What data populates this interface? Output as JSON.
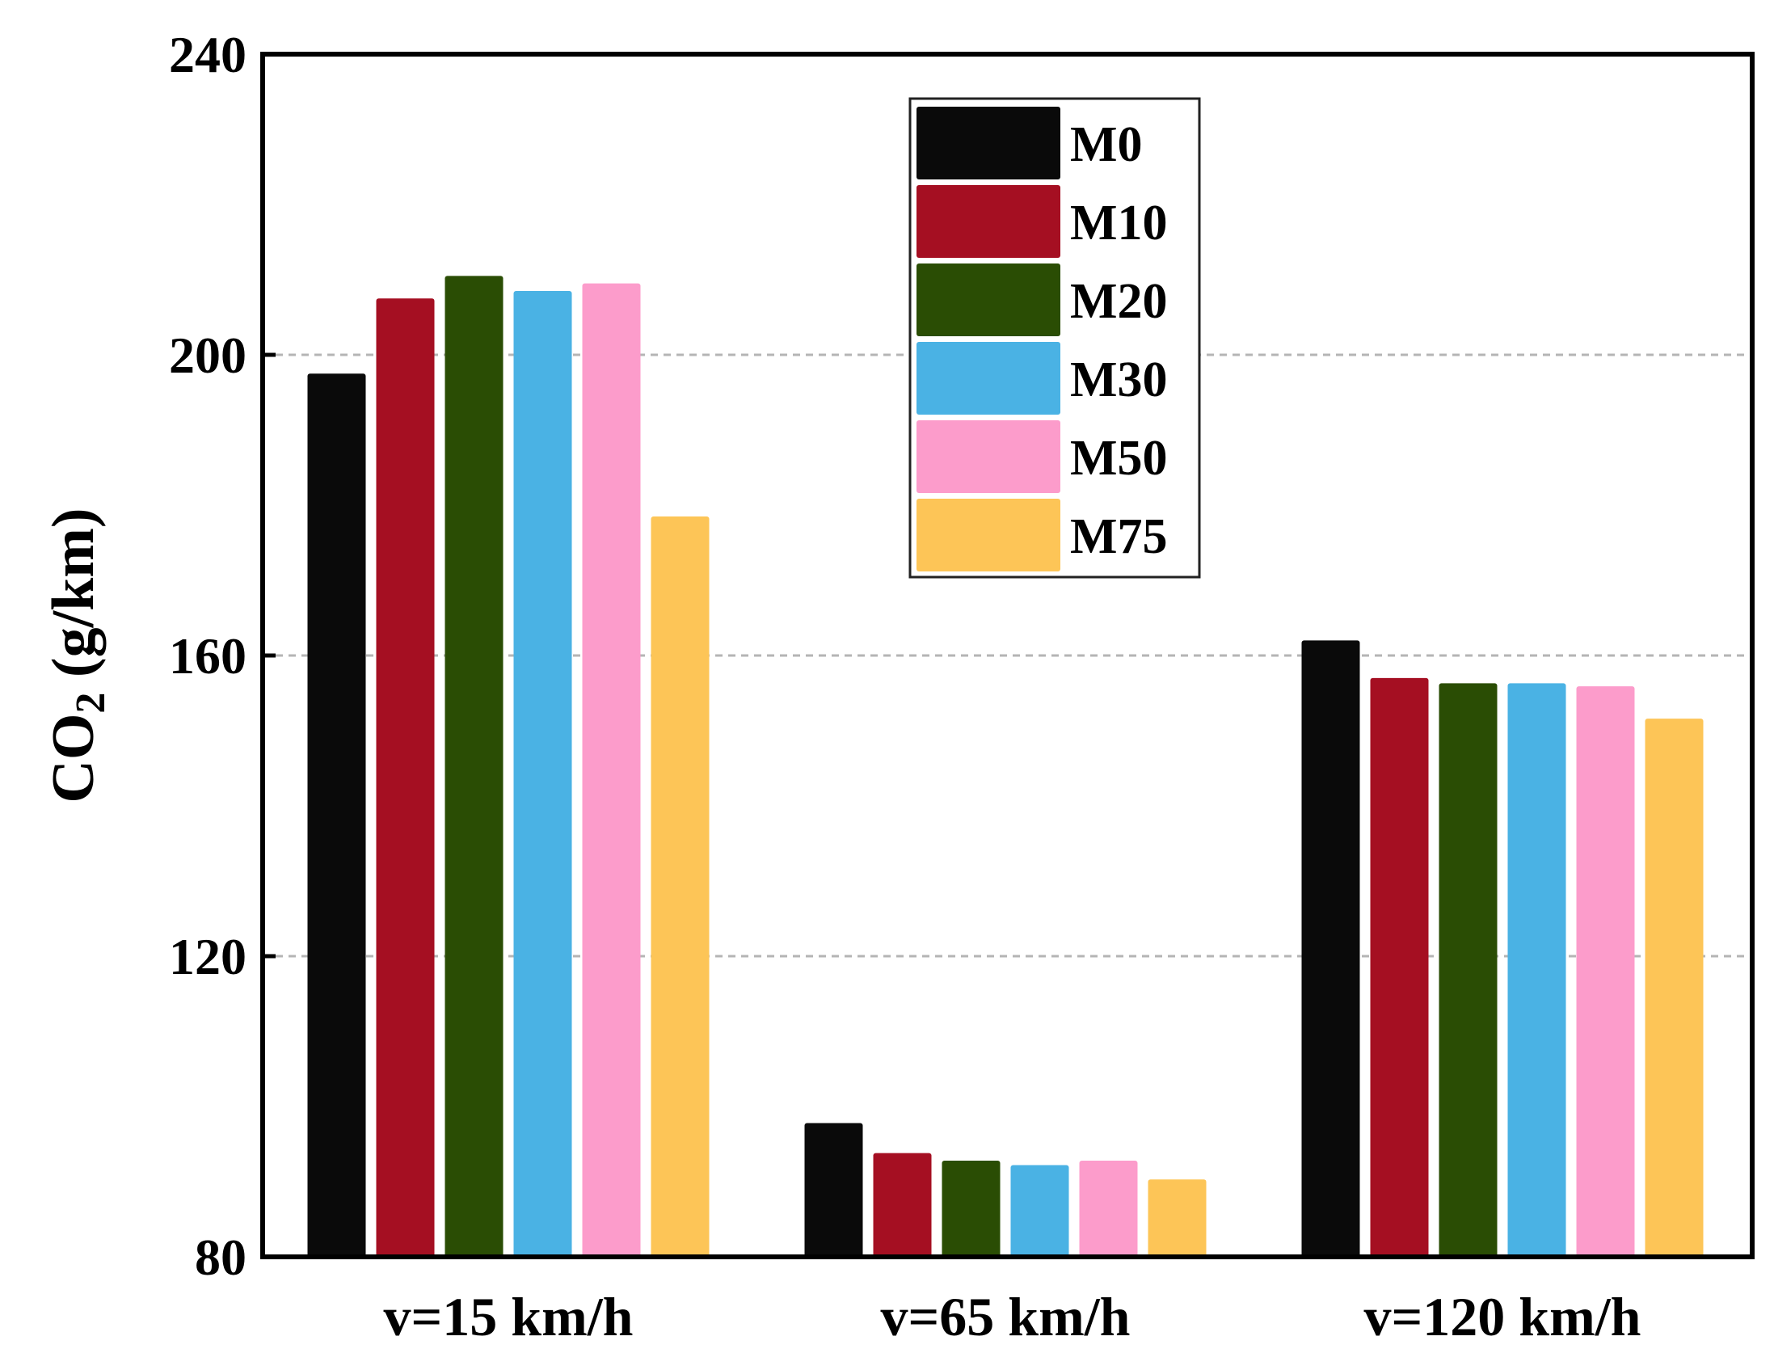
{
  "chart_data": {
    "type": "bar",
    "title": "",
    "xlabel": "",
    "ylabel_main": "CO",
    "ylabel_sub": "2",
    "ylabel_unit": " (g/km)",
    "ylim": [
      80,
      240
    ],
    "yticks": [
      80,
      120,
      160,
      200,
      240
    ],
    "grid": "dashed-horizontal",
    "legend_position": "top-center",
    "categories": [
      "v=15 km/h",
      "v=65 km/h",
      "v=120 km/h"
    ],
    "series": [
      {
        "name": "M0",
        "color": "#0a0a0a",
        "values": [
          197.5,
          97.8,
          162.0
        ]
      },
      {
        "name": "M10",
        "color": "#a50f22",
        "values": [
          207.5,
          93.8,
          157.0
        ]
      },
      {
        "name": "M20",
        "color": "#2a4d04",
        "values": [
          210.5,
          92.8,
          156.3
        ]
      },
      {
        "name": "M30",
        "color": "#4ab2e4",
        "values": [
          208.5,
          92.2,
          156.3
        ]
      },
      {
        "name": "M50",
        "color": "#fc9ccb",
        "values": [
          209.5,
          92.8,
          155.9
        ]
      },
      {
        "name": "M75",
        "color": "#fdc557",
        "values": [
          178.5,
          90.3,
          151.6
        ]
      }
    ]
  }
}
